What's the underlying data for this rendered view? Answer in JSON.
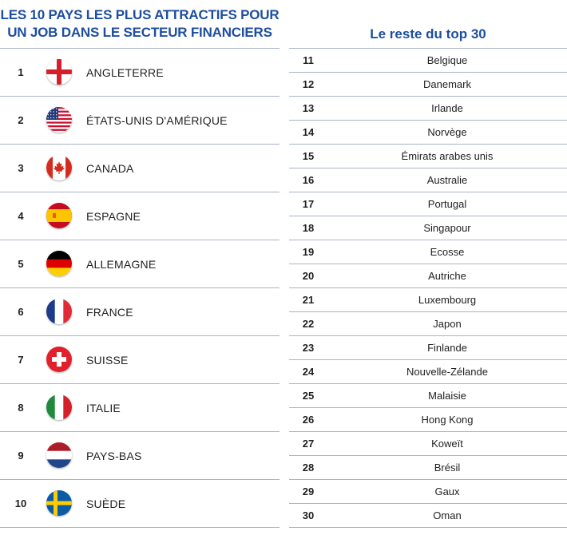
{
  "left": {
    "title_line1": "LES 10 PAYS LES PLUS ATTRACTIFS POUR",
    "title_line2": "UN JOB DANS LE SECTEUR FINANCIERS",
    "rows": [
      {
        "rank": "1",
        "name": "ANGLETERRE",
        "flag": "england-flag-icon"
      },
      {
        "rank": "2",
        "name": "ÉTATS-UNIS D'AMÉRIQUE",
        "flag": "usa-flag-icon"
      },
      {
        "rank": "3",
        "name": "CANADA",
        "flag": "canada-flag-icon"
      },
      {
        "rank": "4",
        "name": "ESPAGNE",
        "flag": "spain-flag-icon"
      },
      {
        "rank": "5",
        "name": "ALLEMAGNE",
        "flag": "germany-flag-icon"
      },
      {
        "rank": "6",
        "name": "FRANCE",
        "flag": "france-flag-icon"
      },
      {
        "rank": "7",
        "name": "SUISSE",
        "flag": "switzerland-flag-icon"
      },
      {
        "rank": "8",
        "name": "ITALIE",
        "flag": "italy-flag-icon"
      },
      {
        "rank": "9",
        "name": "PAYS-BAS",
        "flag": "netherlands-flag-icon"
      },
      {
        "rank": "10",
        "name": "SUÈDE",
        "flag": "sweden-flag-icon"
      }
    ]
  },
  "right": {
    "title": "Le reste du top 30",
    "rows": [
      {
        "rank": "11",
        "name": "Belgique"
      },
      {
        "rank": "12",
        "name": "Danemark"
      },
      {
        "rank": "13",
        "name": "Irlande"
      },
      {
        "rank": "14",
        "name": "Norvège"
      },
      {
        "rank": "15",
        "name": "Émirats arabes unis"
      },
      {
        "rank": "16",
        "name": "Australie"
      },
      {
        "rank": "17",
        "name": "Portugal"
      },
      {
        "rank": "18",
        "name": "Singapour"
      },
      {
        "rank": "19",
        "name": "Ecosse"
      },
      {
        "rank": "20",
        "name": "Autriche"
      },
      {
        "rank": "21",
        "name": "Luxembourg"
      },
      {
        "rank": "22",
        "name": "Japon"
      },
      {
        "rank": "23",
        "name": "Finlande"
      },
      {
        "rank": "24",
        "name": "Nouvelle-Zélande"
      },
      {
        "rank": "25",
        "name": "Malaisie"
      },
      {
        "rank": "26",
        "name": "Hong Kong"
      },
      {
        "rank": "27",
        "name": "Koweït"
      },
      {
        "rank": "28",
        "name": "Brésil"
      },
      {
        "rank": "29",
        "name": "Gaux"
      },
      {
        "rank": "30",
        "name": "Oman"
      }
    ]
  },
  "colors": {
    "title": "#1d4e9e",
    "divider": "#a9b4c8"
  }
}
